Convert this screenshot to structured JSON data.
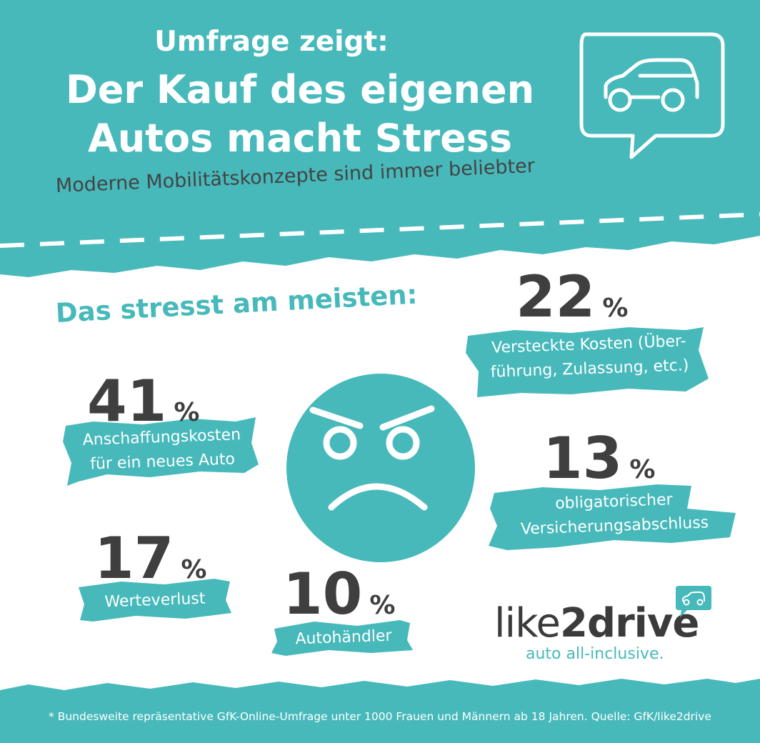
{
  "header": {
    "kicker": "Umfrage zeigt:",
    "title_line1": "Der Kauf des eigenen",
    "title_line2": "Autos macht Stress",
    "subtitle": "Moderne Mobilitätskonzepte sind immer beliebter"
  },
  "section_title": "Das stresst am meisten:",
  "stats": [
    {
      "value": "41",
      "unit": "%",
      "label_line1": "Anschaffungskosten",
      "label_line2": "für ein neues Auto"
    },
    {
      "value": "22",
      "unit": "%",
      "label_line1": "Versteckte Kosten (Über-",
      "label_line2": "führung, Zulassung, etc.)"
    },
    {
      "value": "13",
      "unit": "%",
      "label_line1": "obligatorischer",
      "label_line2": "Versicherungsabschluss"
    },
    {
      "value": "17",
      "unit": "%",
      "label_line1": "Werteverlust"
    },
    {
      "value": "10",
      "unit": "%",
      "label_line1": "Autohändler"
    }
  ],
  "logo": {
    "brand_light": "like",
    "brand_bold": "2drive",
    "tagline": "auto all-inclusive."
  },
  "footer": {
    "note": "* Bundesweite repräsentative GfK-Online-Umfrage unter 1000 Frauen und Männern ab 18 Jahren. Quelle: GfK/like2drive"
  },
  "icons": {
    "header_icon": "car-speech-bubble-icon",
    "center_icon": "angry-face-icon",
    "logo_icon": "car-speech-bubble-icon"
  },
  "colors": {
    "teal": "#47b9bb",
    "dark_text": "#3f3f3f",
    "white": "#ffffff"
  }
}
